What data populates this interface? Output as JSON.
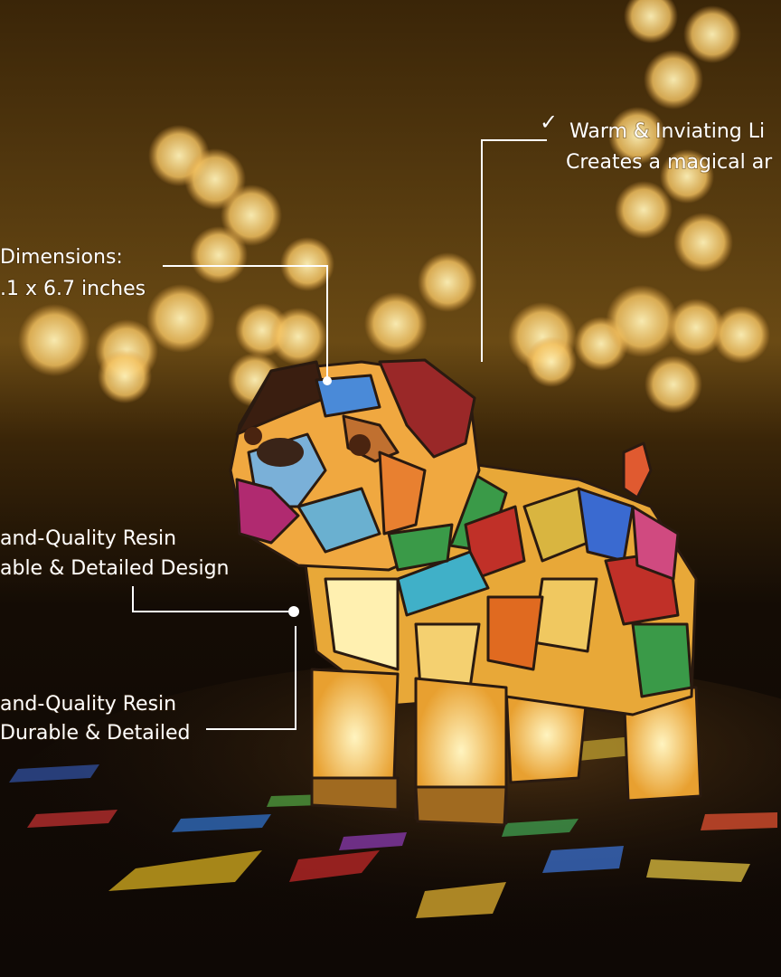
{
  "callouts": [
    {
      "check": "✓",
      "lines": [
        "Warm & Inviating Li",
        "Creates a magical ar"
      ]
    },
    {
      "lines": [
        "Dimensions:",
        ".1 x 6.7 inches"
      ]
    },
    {
      "lines": [
        "and-Quality Resin",
        "able & Detailed Design"
      ]
    },
    {
      "lines": [
        "and-Quality Resin",
        "Durable & Detailed"
      ]
    }
  ]
}
